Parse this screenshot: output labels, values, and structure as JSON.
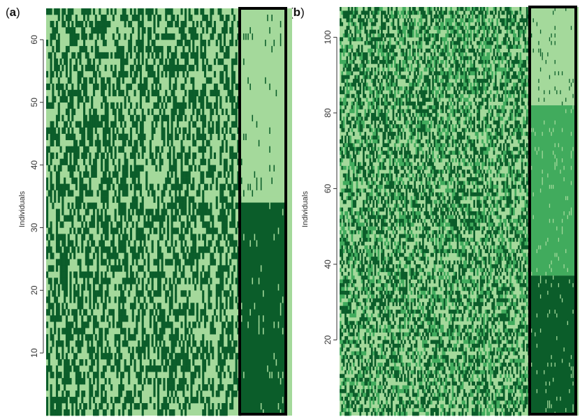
{
  "panels": [
    {
      "label_open": "(",
      "label_letter": "a",
      "label_close": ")"
    },
    {
      "label_open": "(",
      "label_letter": "b",
      "label_close": ")"
    }
  ],
  "colors": {
    "light": "#a4d99b",
    "mid": "#41ab5d",
    "dark": "#0b5d2a",
    "box": "#000000",
    "axis": "#333333"
  },
  "chart_data": [
    {
      "type": "heatmap",
      "panel": "a",
      "ylabel": "Individuals",
      "yticks": [
        10,
        20,
        30,
        40,
        50,
        60
      ],
      "ylim": [
        0,
        65
      ],
      "individuals": 65,
      "n_columns": 120,
      "highlighted_columns": 20,
      "levels": [
        "light",
        "dark"
      ],
      "highlight_groups": [
        {
          "from": 35,
          "to": 65,
          "color": "light"
        },
        {
          "from": 0,
          "to": 34,
          "color": "dark"
        }
      ]
    },
    {
      "type": "heatmap",
      "panel": "b",
      "ylabel": "Individuals",
      "yticks": [
        20,
        40,
        60,
        80,
        100
      ],
      "ylim": [
        0,
        108
      ],
      "individuals": 108,
      "n_columns": 140,
      "highlighted_columns": 24,
      "levels": [
        "light",
        "mid",
        "dark"
      ],
      "highlight_groups": [
        {
          "from": 82,
          "to": 108,
          "color": "light"
        },
        {
          "from": 37,
          "to": 82,
          "color": "mid"
        },
        {
          "from": 0,
          "to": 37,
          "color": "dark"
        }
      ]
    }
  ]
}
